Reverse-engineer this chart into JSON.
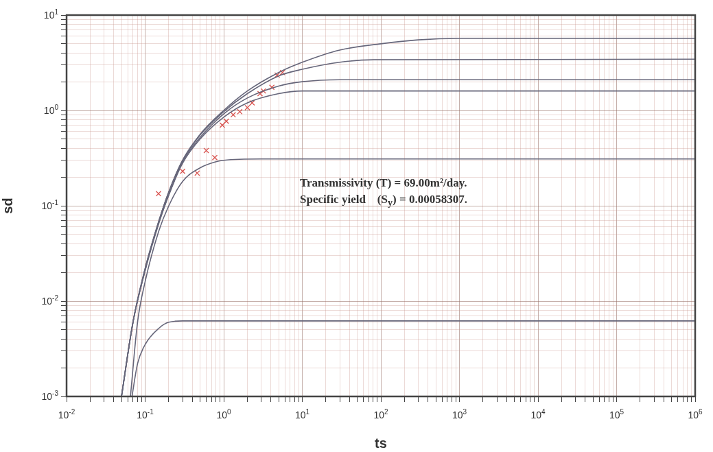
{
  "chart_data": {
    "type": "line",
    "xlabel": "ts",
    "ylabel": "sd",
    "log": "xy",
    "grid": true,
    "legend": false,
    "marker": "none",
    "line_style": "solid",
    "xlim": [
      0.01,
      1000000
    ],
    "ylim": [
      0.001,
      10
    ],
    "xticks": [
      {
        "value": 0.01,
        "label": "10$^{-2}$"
      },
      {
        "value": 0.02,
        "label": null
      },
      {
        "value": 0.03,
        "label": null
      },
      {
        "value": 0.04,
        "label": null
      },
      {
        "value": 0.05,
        "label": null
      },
      {
        "value": 0.06,
        "label": null
      },
      {
        "value": 0.07,
        "label": null
      },
      {
        "value": 0.08,
        "label": null
      },
      {
        "value": 0.09,
        "label": null
      },
      {
        "value": 0.1,
        "label": "10$^{-1}$"
      },
      {
        "value": 0.2,
        "label": null
      },
      {
        "value": 0.3,
        "label": null
      },
      {
        "value": 0.4,
        "label": null
      },
      {
        "value": 0.5,
        "label": null
      },
      {
        "value": 0.6,
        "label": null
      },
      {
        "value": 0.7,
        "label": null
      },
      {
        "value": 0.8,
        "label": null
      },
      {
        "value": 0.9,
        "label": null
      },
      {
        "value": 1,
        "label": "10$^{0}$"
      },
      {
        "value": 2,
        "label": null
      },
      {
        "value": 3,
        "label": null
      },
      {
        "value": 4,
        "label": null
      },
      {
        "value": 5,
        "label": null
      },
      {
        "value": 6,
        "label": null
      },
      {
        "value": 7,
        "label": null
      },
      {
        "value": 8,
        "label": null
      },
      {
        "value": 9,
        "label": null
      },
      {
        "value": 10,
        "label": "10$^{1}$"
      },
      {
        "value": 20,
        "label": null
      },
      {
        "value": 30,
        "label": null
      },
      {
        "value": 40,
        "label": null
      },
      {
        "value": 50,
        "label": null
      },
      {
        "value": 60,
        "label": null
      },
      {
        "value": 70,
        "label": null
      },
      {
        "value": 80,
        "label": null
      },
      {
        "value": 90,
        "label": null
      },
      {
        "value": 100,
        "label": "10$^{2}$"
      },
      {
        "value": 200,
        "label": null
      },
      {
        "value": 300,
        "label": null
      },
      {
        "value": 400,
        "label": null
      },
      {
        "value": 500,
        "label": null
      },
      {
        "value": 600,
        "label": null
      },
      {
        "value": 700,
        "label": null
      },
      {
        "value": 800,
        "label": null
      },
      {
        "value": 900,
        "label": null
      },
      {
        "value": 1000,
        "label": "10$^{3}$"
      },
      {
        "value": 2000,
        "label": null
      },
      {
        "value": 3000,
        "label": null
      },
      {
        "value": 4000,
        "label": null
      },
      {
        "value": 5000,
        "label": null
      },
      {
        "value": 6000,
        "label": null
      },
      {
        "value": 7000,
        "label": null
      },
      {
        "value": 8000,
        "label": null
      },
      {
        "value": 9000,
        "label": null
      },
      {
        "value": 10000,
        "label": "10$^{4}$"
      },
      {
        "value": 20000,
        "label": null
      },
      {
        "value": 30000,
        "label": null
      },
      {
        "value": 40000,
        "label": null
      },
      {
        "value": 50000,
        "label": null
      },
      {
        "value": 60000,
        "label": null
      },
      {
        "value": 70000,
        "label": null
      },
      {
        "value": 80000,
        "label": null
      },
      {
        "value": 90000,
        "label": null
      },
      {
        "value": 100000,
        "label": "10$^{5}$"
      },
      {
        "value": 200000,
        "label": null
      },
      {
        "value": 300000,
        "label": null
      },
      {
        "value": 400000,
        "label": null
      },
      {
        "value": 500000,
        "label": null
      },
      {
        "value": 600000,
        "label": null
      },
      {
        "value": 700000,
        "label": null
      },
      {
        "value": 800000,
        "label": null
      },
      {
        "value": 900000,
        "label": null
      },
      {
        "value": 1000000,
        "label": "10$^{6}$"
      }
    ],
    "yticks": [
      {
        "value": 0.001,
        "label": "10$^{-3}$"
      },
      {
        "value": 0.002,
        "label": null
      },
      {
        "value": 0.003,
        "label": null
      },
      {
        "value": 0.004,
        "label": null
      },
      {
        "value": 0.005,
        "label": null
      },
      {
        "value": 0.006,
        "label": null
      },
      {
        "value": 0.007,
        "label": null
      },
      {
        "value": 0.008,
        "label": null
      },
      {
        "value": 0.009,
        "label": null
      },
      {
        "value": 0.01,
        "label": "10$^{-2}$"
      },
      {
        "value": 0.02,
        "label": null
      },
      {
        "value": 0.03,
        "label": null
      },
      {
        "value": 0.04,
        "label": null
      },
      {
        "value": 0.05,
        "label": null
      },
      {
        "value": 0.06,
        "label": null
      },
      {
        "value": 0.07,
        "label": null
      },
      {
        "value": 0.08,
        "label": null
      },
      {
        "value": 0.09,
        "label": null
      },
      {
        "value": 0.1,
        "label": "10$^{-1}$"
      },
      {
        "value": 0.2,
        "label": null
      },
      {
        "value": 0.3,
        "label": null
      },
      {
        "value": 0.4,
        "label": null
      },
      {
        "value": 0.5,
        "label": null
      },
      {
        "value": 0.6,
        "label": null
      },
      {
        "value": 0.7,
        "label": null
      },
      {
        "value": 0.8,
        "label": null
      },
      {
        "value": 0.9,
        "label": null
      },
      {
        "value": 1,
        "label": "10$^{0}$"
      },
      {
        "value": 2,
        "label": null
      },
      {
        "value": 3,
        "label": null
      },
      {
        "value": 4,
        "label": null
      },
      {
        "value": 5,
        "label": null
      },
      {
        "value": 6,
        "label": null
      },
      {
        "value": 7,
        "label": null
      },
      {
        "value": 8,
        "label": null
      },
      {
        "value": 9,
        "label": null
      },
      {
        "value": 10,
        "label": "10$^{1}$"
      }
    ],
    "annotations": [
      "Transmissivity (T) = 69.00m²/day.",
      "Specific yield    (S$_{y}$) = 0.00058307."
    ],
    "series": [
      {
        "color": "#66667a",
        "x": [
          0.05,
          0.07,
          0.1,
          0.15,
          0.2,
          0.3,
          0.5,
          1,
          2,
          5,
          10,
          30,
          100,
          300,
          1000,
          1000000
        ],
        "values": [
          0.001,
          0.006,
          0.022,
          0.07,
          0.14,
          0.3,
          0.56,
          1.0,
          1.6,
          2.5,
          3.2,
          4.3,
          5.0,
          5.5,
          5.7,
          5.7
        ]
      },
      {
        "color": "#66667a",
        "x": [
          0.05,
          0.07,
          0.1,
          0.15,
          0.2,
          0.3,
          0.5,
          1,
          2,
          5,
          10,
          30,
          80,
          1000000
        ],
        "values": [
          0.001,
          0.006,
          0.022,
          0.07,
          0.14,
          0.3,
          0.55,
          0.97,
          1.5,
          2.3,
          2.7,
          3.2,
          3.4,
          3.45
        ]
      },
      {
        "color": "#66667a",
        "x": [
          0.05,
          0.07,
          0.1,
          0.15,
          0.2,
          0.3,
          0.5,
          1,
          2,
          5,
          10,
          30,
          1000000
        ],
        "values": [
          0.001,
          0.006,
          0.021,
          0.068,
          0.13,
          0.29,
          0.52,
          0.92,
          1.35,
          1.8,
          2.0,
          2.1,
          2.1
        ]
      },
      {
        "color": "#66667a",
        "x": [
          0.05,
          0.07,
          0.1,
          0.15,
          0.2,
          0.3,
          0.5,
          1,
          2,
          5,
          10,
          1000000
        ],
        "values": [
          0.001,
          0.006,
          0.021,
          0.066,
          0.13,
          0.28,
          0.5,
          0.85,
          1.2,
          1.5,
          1.6,
          1.6
        ]
      },
      {
        "color": "#66667a",
        "x": [
          0.065,
          0.08,
          0.1,
          0.15,
          0.2,
          0.3,
          0.5,
          0.8,
          1,
          3,
          1000000
        ],
        "values": [
          0.001,
          0.006,
          0.016,
          0.055,
          0.1,
          0.18,
          0.25,
          0.29,
          0.3,
          0.31,
          0.31
        ]
      },
      {
        "color": "#66667a",
        "x": [
          0.068,
          0.08,
          0.1,
          0.15,
          0.2,
          0.3,
          1000000
        ],
        "values": [
          0.001,
          0.0022,
          0.0035,
          0.0052,
          0.006,
          0.0062,
          0.0062
        ]
      },
      {
        "type": "scatter",
        "marker": "cross",
        "color": "#d9534f",
        "x": [
          0.148,
          0.3,
          0.46,
          0.6,
          0.77,
          0.96,
          1.08,
          1.32,
          1.6,
          2.0,
          2.3,
          2.9,
          3.2,
          4.1,
          4.8,
          5.6
        ],
        "values": [
          0.134,
          0.23,
          0.22,
          0.38,
          0.32,
          0.7,
          0.77,
          0.9,
          0.97,
          1.07,
          1.2,
          1.5,
          1.6,
          1.75,
          2.35,
          2.5
        ]
      }
    ]
  }
}
